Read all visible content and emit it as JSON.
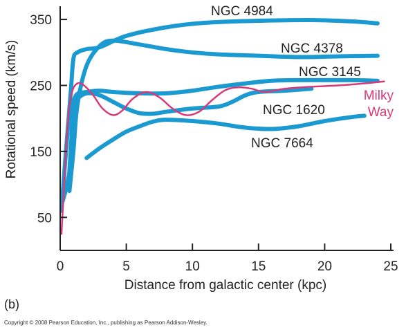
{
  "panel_label": "(b)",
  "copyright": "Copyright © 2008 Pearson Education, Inc., publishing as Pearson Addison-Wesley.",
  "colors": {
    "galaxy": "#1b9ad2",
    "milky_way": "#d83a78",
    "axis": "#222222",
    "text": "#222222"
  },
  "chart_data": {
    "type": "line",
    "title": "",
    "xlabel": "Distance from galactic center (kpc)",
    "ylabel": "Rotational speed (km/s)",
    "xlim": [
      0,
      25
    ],
    "ylim": [
      0,
      370
    ],
    "xticks": [
      0,
      5,
      10,
      15,
      20,
      25
    ],
    "yticks": [
      50,
      150,
      250,
      350
    ],
    "grid": false,
    "series": [
      {
        "name": "NGC 4984",
        "label_lines": [
          "NGC 4984"
        ],
        "color": "#1b9ad2",
        "points": [
          [
            0.1,
            60
          ],
          [
            0.4,
            140
          ],
          [
            0.8,
            240
          ],
          [
            1.0,
            290
          ],
          [
            1.3,
            300
          ],
          [
            2,
            305
          ],
          [
            3,
            308
          ],
          [
            5,
            325
          ],
          [
            8,
            338
          ],
          [
            11,
            345
          ],
          [
            15,
            348
          ],
          [
            19,
            349
          ],
          [
            22,
            347
          ],
          [
            24,
            344
          ]
        ]
      },
      {
        "name": "NGC 4378",
        "label_lines": [
          "NGC 4378"
        ],
        "color": "#1b9ad2",
        "points": [
          [
            0.7,
            90
          ],
          [
            1.0,
            150
          ],
          [
            1.3,
            220
          ],
          [
            2,
            280
          ],
          [
            3,
            310
          ],
          [
            4,
            318
          ],
          [
            6,
            312
          ],
          [
            8,
            305
          ],
          [
            10,
            300
          ],
          [
            12,
            297
          ],
          [
            15,
            295
          ],
          [
            18,
            293
          ],
          [
            21,
            294
          ],
          [
            24,
            295
          ]
        ]
      },
      {
        "name": "NGC 3145",
        "label_lines": [
          "NGC 3145"
        ],
        "color": "#1b9ad2",
        "points": [
          [
            0.7,
            120
          ],
          [
            1.0,
            210
          ],
          [
            1.2,
            235
          ],
          [
            2,
            240
          ],
          [
            3,
            242
          ],
          [
            4,
            240
          ],
          [
            6,
            238
          ],
          [
            8,
            238
          ],
          [
            10,
            242
          ],
          [
            12,
            248
          ],
          [
            14,
            253
          ],
          [
            16,
            257
          ],
          [
            18,
            258
          ],
          [
            20,
            258
          ],
          [
            22,
            258
          ],
          [
            24,
            257
          ]
        ]
      },
      {
        "name": "NGC 1620",
        "label_lines": [
          "NGC 1620"
        ],
        "color": "#1b9ad2",
        "points": [
          [
            0.2,
            75
          ],
          [
            0.7,
            120
          ],
          [
            1.0,
            220
          ],
          [
            1.3,
            230
          ],
          [
            2,
            238
          ],
          [
            3,
            235
          ],
          [
            4,
            225
          ],
          [
            5,
            215
          ],
          [
            6,
            208
          ],
          [
            7,
            207
          ],
          [
            8,
            210
          ],
          [
            10,
            215
          ],
          [
            12,
            218
          ],
          [
            13,
            225
          ],
          [
            14,
            235
          ],
          [
            15,
            240
          ],
          [
            17,
            242
          ],
          [
            19,
            245
          ]
        ]
      },
      {
        "name": "NGC 7664",
        "label_lines": [
          "NGC 7664"
        ],
        "color": "#1b9ad2",
        "points": [
          [
            2,
            140
          ],
          [
            3,
            155
          ],
          [
            4,
            168
          ],
          [
            5,
            180
          ],
          [
            6,
            188
          ],
          [
            7,
            195
          ],
          [
            8,
            198
          ],
          [
            10,
            196
          ],
          [
            12,
            192
          ],
          [
            14,
            186
          ],
          [
            16,
            184
          ],
          [
            18,
            188
          ],
          [
            20,
            196
          ],
          [
            22,
            202
          ],
          [
            23,
            204
          ]
        ]
      },
      {
        "name": "Milky Way",
        "label_lines": [
          "Milky",
          "Way"
        ],
        "color": "#d83a78",
        "points": [
          [
            0.1,
            25
          ],
          [
            0.3,
            100
          ],
          [
            0.6,
            200
          ],
          [
            0.9,
            240
          ],
          [
            1.3,
            253
          ],
          [
            1.8,
            250
          ],
          [
            2.5,
            235
          ],
          [
            3.2,
            215
          ],
          [
            4,
            205
          ],
          [
            4.7,
            212
          ],
          [
            5.5,
            230
          ],
          [
            6.5,
            240
          ],
          [
            7.5,
            232
          ],
          [
            8.5,
            215
          ],
          [
            9.5,
            205
          ],
          [
            10.5,
            210
          ],
          [
            11.5,
            228
          ],
          [
            12.5,
            243
          ],
          [
            13.5,
            247
          ],
          [
            14.5,
            245
          ],
          [
            15.5,
            240
          ],
          [
            17,
            245
          ],
          [
            19,
            248
          ],
          [
            21,
            250
          ],
          [
            23,
            253
          ],
          [
            24.5,
            256
          ]
        ]
      }
    ]
  }
}
